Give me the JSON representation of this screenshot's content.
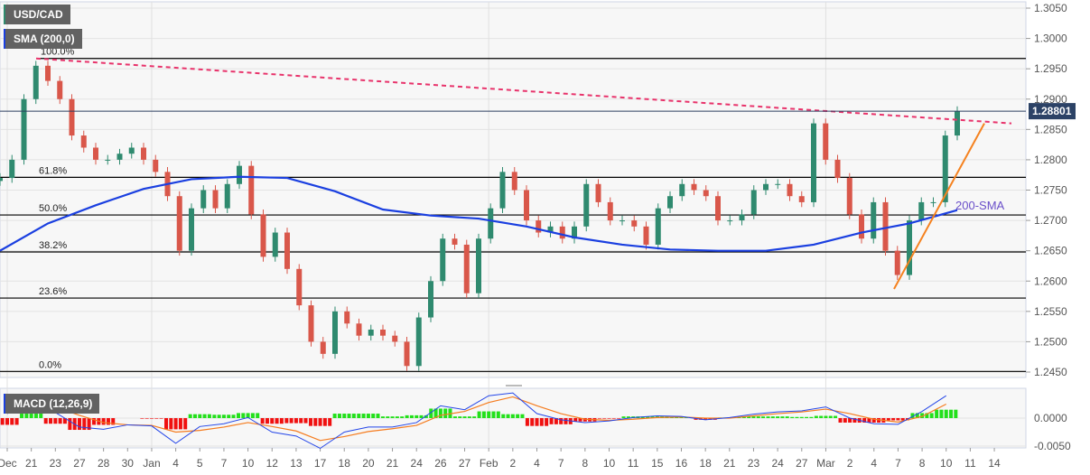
{
  "chart_data": {
    "type": "candlestick",
    "title": "USD/CAD",
    "indicator_label": "SMA (200,0)",
    "sma_label": "200-SMA",
    "last_price": "1.28801",
    "x_tick_labels": [
      "Dec",
      "21",
      "23",
      "27",
      "28",
      "30",
      "Jan",
      "4",
      "5",
      "7",
      "10",
      "12",
      "13",
      "17",
      "18",
      "20",
      "21",
      "24",
      "26",
      "27",
      "Feb",
      "2",
      "4",
      "7",
      "8",
      "10",
      "11",
      "15",
      "16",
      "18",
      "21",
      "23",
      "24",
      "27",
      "Mar",
      "2",
      "4",
      "7",
      "8",
      "10",
      "11",
      "14"
    ],
    "y_ticks": [
      "1.3050",
      "1.3000",
      "1.2950",
      "1.2900",
      "1.2850",
      "1.2800",
      "1.2750",
      "1.2700",
      "1.2650",
      "1.2600",
      "1.2550",
      "1.2500",
      "1.2450"
    ],
    "ylim": [
      1.245,
      1.305
    ],
    "closes": [
      1.277,
      1.28,
      1.29,
      1.2955,
      1.293,
      1.29,
      1.284,
      1.282,
      1.28,
      1.28,
      1.281,
      1.282,
      1.28,
      1.278,
      1.274,
      1.265,
      1.272,
      1.275,
      1.272,
      1.276,
      1.279,
      1.271,
      1.264,
      1.268,
      1.262,
      1.256,
      1.25,
      1.248,
      1.255,
      1.253,
      1.251,
      1.252,
      1.251,
      1.25,
      1.246,
      1.254,
      1.26,
      1.267,
      1.266,
      1.258,
      1.267,
      1.272,
      1.278,
      1.275,
      1.27,
      1.268,
      1.269,
      1.267,
      1.269,
      1.276,
      1.273,
      1.27,
      1.27,
      1.269,
      1.266,
      1.272,
      1.274,
      1.276,
      1.275,
      1.274,
      1.27,
      1.27,
      1.271,
      1.275,
      1.276,
      1.276,
      1.274,
      1.273,
      1.286,
      1.28,
      1.277,
      1.271,
      1.267,
      1.273,
      1.265,
      1.261,
      1.27,
      1.273,
      1.273,
      1.284,
      1.288
    ],
    "sma200": [
      1.265,
      1.2695,
      1.2725,
      1.2752,
      1.2768,
      1.2772,
      1.277,
      1.2748,
      1.2718,
      1.2708,
      1.2703,
      1.269,
      1.2672,
      1.266,
      1.2652,
      1.265,
      1.265,
      1.266,
      1.268,
      1.2695,
      1.2717
    ],
    "fibonacci": [
      {
        "label": "100.0%",
        "value": 1.2967
      },
      {
        "label": "61.8%",
        "value": 1.2771
      },
      {
        "label": "50.0%",
        "value": 1.2709
      },
      {
        "label": "38.2%",
        "value": 1.2648
      },
      {
        "label": "23.6%",
        "value": 1.2572
      },
      {
        "label": "0.0%",
        "value": 1.2451
      }
    ],
    "resistance_line": {
      "from": 1.2967,
      "to": 1.286,
      "color": "#e8336b"
    },
    "support_line": {
      "from": 1.2587,
      "to": 1.286,
      "color": "#f5821f"
    },
    "colors": {
      "up": "#2f8a6f",
      "down": "#d9574a",
      "sma": "#1a3fe0",
      "fib": "#000000",
      "sma_label": "#6a4fc9"
    },
    "macd": {
      "label": "MACD (12,26,9)",
      "y_ticks": [
        "0.0000",
        "-0.0050"
      ],
      "ylim": [
        -0.0055,
        0.0053
      ],
      "macd": [
        0.0008,
        0.0033,
        0.001,
        -0.0016,
        -0.002,
        -0.0012,
        -0.0014,
        -0.0045,
        -0.0015,
        -0.001,
        0.0001,
        -0.0025,
        -0.0032,
        -0.0054,
        -0.0025,
        -0.0016,
        -0.0016,
        -0.0008,
        0.0022,
        0.0015,
        0.004,
        0.0045,
        0.0008,
        -0.0003,
        -0.0008,
        -0.0005,
        0.0001,
        0.0004,
        0.0003,
        -0.0003,
        0.0001,
        0.0007,
        0.0011,
        0.0013,
        0.002,
        0.0,
        -0.001,
        -0.0011,
        0.0012,
        0.004
      ],
      "signal": [
        0.002,
        0.0025,
        0.002,
        0.0005,
        -0.0008,
        -0.0012,
        -0.0013,
        -0.0025,
        -0.0022,
        -0.0016,
        -0.0008,
        -0.0015,
        -0.0023,
        -0.004,
        -0.0033,
        -0.0024,
        -0.0019,
        -0.0013,
        0.0005,
        0.0012,
        0.0028,
        0.0038,
        0.0022,
        0.0008,
        -0.0002,
        -0.0004,
        -0.0002,
        0.0001,
        0.0002,
        0.0,
        0.0,
        0.0004,
        0.0008,
        0.0011,
        0.0016,
        0.0008,
        -0.0002,
        -0.0007,
        0.0003,
        0.0025
      ],
      "colors": {
        "macd": "#2446e8",
        "signal": "#f57c1f",
        "hist_up": "#22e01a",
        "hist_down": "#f01010"
      }
    }
  }
}
